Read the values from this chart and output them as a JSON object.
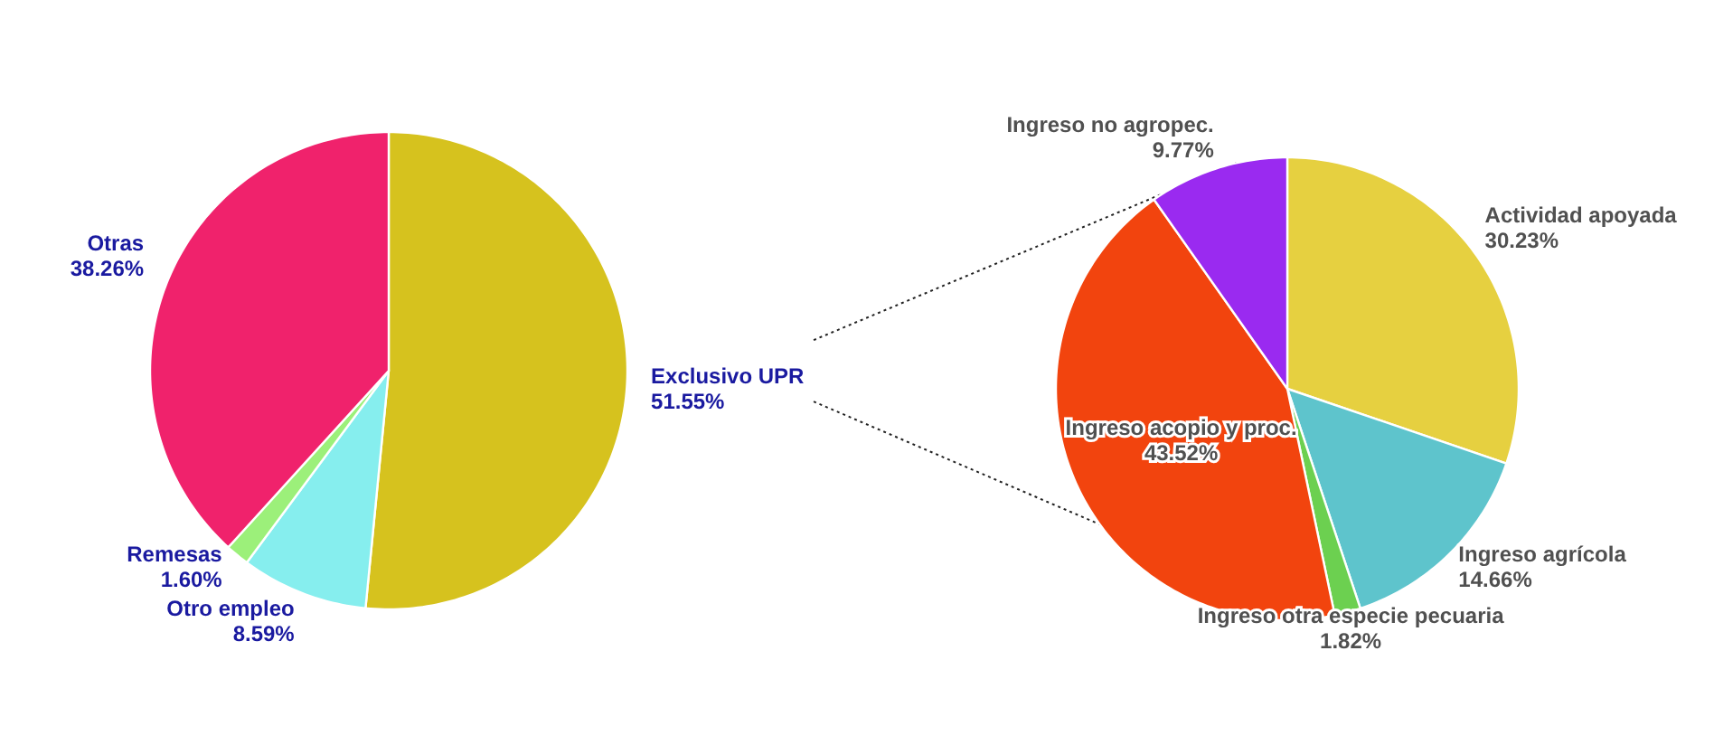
{
  "chart_data": [
    {
      "type": "pie",
      "categories": [
        "Exclusivo UPR",
        "Otro empleo",
        "Remesas",
        "Otras"
      ],
      "values": [
        51.55,
        8.59,
        1.6,
        38.26
      ],
      "colors": [
        "#d6c21e",
        "#86eeee",
        "#9cf07a",
        "#f0226c"
      ],
      "value_labels": [
        "51.55%",
        "8.59%",
        "1.60%",
        "38.26%"
      ]
    },
    {
      "type": "pie",
      "categories": [
        "Actividad apoyada",
        "Ingreso agrícola",
        "Ingreso otra especie  pecuaria",
        "Ingreso acopio y proc.",
        "Ingreso no agropec."
      ],
      "values": [
        30.23,
        14.66,
        1.82,
        43.52,
        9.77
      ],
      "colors": [
        "#e6d040",
        "#5ec4cc",
        "#6cd050",
        "#f2440e",
        "#9a2af0"
      ],
      "value_labels": [
        "30.23%",
        "14.66%",
        "1.82%",
        "43.52%",
        "9.77%"
      ]
    }
  ]
}
